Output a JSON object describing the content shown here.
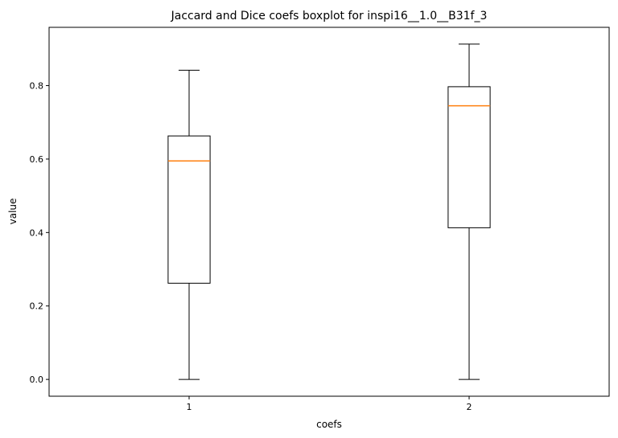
{
  "chart_data": {
    "type": "boxplot",
    "title": "Jaccard and Dice coefs boxplot for inspi16__1.0__B31f_3",
    "xlabel": "coefs",
    "ylabel": "value",
    "categories": [
      "1",
      "2"
    ],
    "boxes": [
      {
        "whisker_low": 0.0,
        "q1": 0.262,
        "median": 0.595,
        "q3": 0.663,
        "whisker_high": 0.842
      },
      {
        "whisker_low": 0.0,
        "q1": 0.413,
        "median": 0.745,
        "q3": 0.797,
        "whisker_high": 0.913
      }
    ],
    "y_ticks": [
      "0.0",
      "0.2",
      "0.4",
      "0.6",
      "0.8"
    ],
    "ylim": [
      -0.0457,
      0.9587
    ],
    "xlim": [
      0.5,
      2.5
    ],
    "grid": false,
    "legend": "none",
    "colors": {
      "box": "#000000",
      "median": "#ff7f0e",
      "axes": "#000000"
    }
  }
}
